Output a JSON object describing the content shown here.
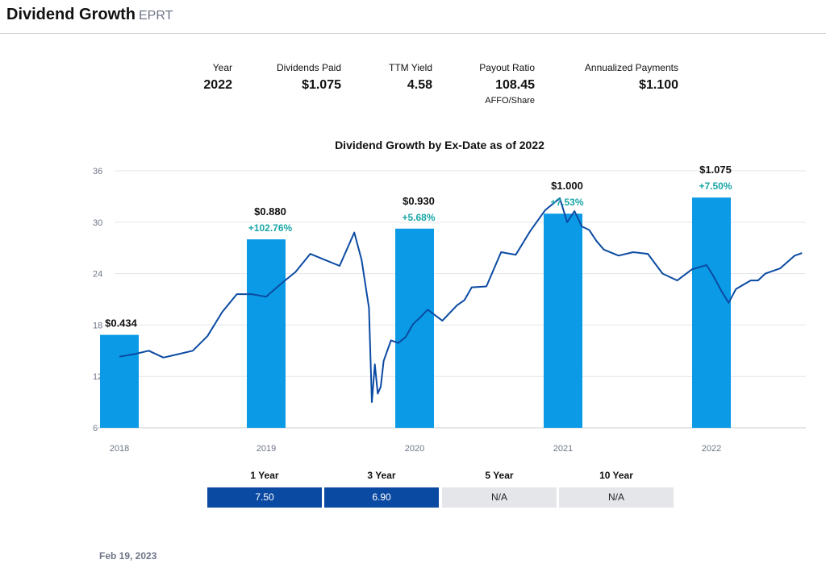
{
  "header": {
    "title": "Dividend Growth",
    "ticker": "EPRT"
  },
  "metrics": [
    {
      "label": "Year",
      "value": "2022",
      "sub": ""
    },
    {
      "label": "Dividends Paid",
      "value": "$1.075",
      "sub": ""
    },
    {
      "label": "TTM Yield",
      "value": "4.58",
      "sub": ""
    },
    {
      "label": "Payout Ratio",
      "value": "108.45",
      "sub": "AFFO/Share"
    },
    {
      "label": "Annualized Payments",
      "value": "$1.100",
      "sub": ""
    }
  ],
  "chart_data": {
    "type": "bar",
    "title": "Dividend Growth by Ex-Date as of 2022",
    "categories": [
      "2018",
      "2019",
      "2020",
      "2021",
      "2022"
    ],
    "series": [
      {
        "values": [
          0.434,
          0.88,
          0.93,
          1.0,
          1.075
        ]
      }
    ],
    "value_labels": [
      "$0.434",
      "$0.880",
      "$0.930",
      "$1.000",
      "$1.075"
    ],
    "growth_labels": [
      "",
      "+102.76%",
      "+5.68%",
      "+7.53%",
      "+7.50%"
    ],
    "bar_max": 1.2,
    "price_axis": {
      "ticks": [
        "6",
        "12",
        "18",
        "24",
        "30",
        "36"
      ],
      "ylim": [
        6,
        36
      ]
    },
    "price_line": {
      "t": [
        2018.0,
        2018.1,
        2018.2,
        2018.3,
        2018.4,
        2018.5,
        2018.6,
        2018.7,
        2018.8,
        2018.9,
        2019.0,
        2019.1,
        2019.2,
        2019.3,
        2019.4,
        2019.5,
        2019.6,
        2019.65,
        2019.7,
        2019.72,
        2019.74,
        2019.76,
        2019.78,
        2019.8,
        2019.85,
        2019.9,
        2019.95,
        2020.0,
        2020.05,
        2020.1,
        2020.2,
        2020.3,
        2020.35,
        2020.4,
        2020.5,
        2020.6,
        2020.7,
        2020.8,
        2020.9,
        2021.0,
        2021.05,
        2021.1,
        2021.15,
        2021.2,
        2021.25,
        2021.3,
        2021.4,
        2021.5,
        2021.6,
        2021.7,
        2021.8,
        2021.9,
        2022.0,
        2022.05,
        2022.1,
        2022.15,
        2022.2,
        2022.3,
        2022.35,
        2022.4,
        2022.5,
        2022.6,
        2022.65
      ],
      "y": [
        14.3,
        14.6,
        15.0,
        14.2,
        14.6,
        15.0,
        16.7,
        19.5,
        21.6,
        21.6,
        21.3,
        22.8,
        24.2,
        26.3,
        25.6,
        24.9,
        28.8,
        25.6,
        20.0,
        9.0,
        13.4,
        10.0,
        10.8,
        13.8,
        16.2,
        15.9,
        16.6,
        18.1,
        18.9,
        19.8,
        18.5,
        20.3,
        20.9,
        22.4,
        22.5,
        26.5,
        26.2,
        29.0,
        31.4,
        32.8,
        30.0,
        31.3,
        29.5,
        29.1,
        27.8,
        26.8,
        26.1,
        26.5,
        26.3,
        24.0,
        23.2,
        24.5,
        25.0,
        23.6,
        22.0,
        20.6,
        22.2,
        23.2,
        23.2,
        24.0,
        24.6,
        26.1,
        26.4
      ]
    },
    "growth_rates": [
      {
        "period": "1 Year",
        "value": "7.50"
      },
      {
        "period": "3 Year",
        "value": "6.90"
      },
      {
        "period": "5 Year",
        "value": "N/A"
      },
      {
        "period": "10 Year",
        "value": "N/A"
      }
    ]
  },
  "colors": {
    "bar": "#0b9be6",
    "line": "#0b4aa2",
    "growth": "#1aa6a6",
    "grid": "#e3e5ea",
    "axis_text": "#6e7587"
  },
  "footer": {
    "date": "Feb 19, 2023"
  }
}
